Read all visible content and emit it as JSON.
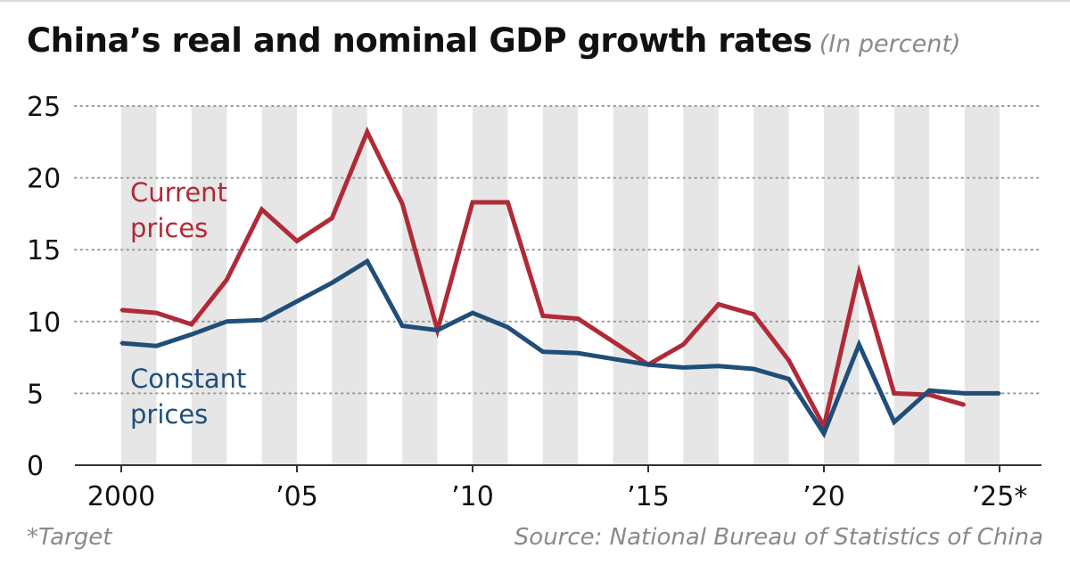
{
  "title": "China’s real and nominal GDP growth rates",
  "title_unit": "(In percent)",
  "footnote": "*Target",
  "source": "Source: National Bureau of Statistics of China",
  "chart_data": {
    "type": "line",
    "x": [
      2000,
      2001,
      2002,
      2003,
      2004,
      2005,
      2006,
      2007,
      2008,
      2009,
      2010,
      2011,
      2012,
      2013,
      2014,
      2015,
      2016,
      2017,
      2018,
      2019,
      2020,
      2021,
      2022,
      2023,
      2024,
      2025
    ],
    "series": [
      {
        "name": "Current prices",
        "label_lines": [
          "Current",
          "prices"
        ],
        "color": "#b02a37",
        "values": [
          10.8,
          10.6,
          9.8,
          12.9,
          17.8,
          15.6,
          17.2,
          23.2,
          18.2,
          9.4,
          18.3,
          18.3,
          10.4,
          10.2,
          8.6,
          7.0,
          8.4,
          11.2,
          10.5,
          7.3,
          2.7,
          13.4,
          5.0,
          4.9,
          4.2,
          null
        ]
      },
      {
        "name": "Constant prices",
        "label_lines": [
          "Constant",
          "prices"
        ],
        "color": "#1f4e79",
        "values": [
          8.5,
          8.3,
          9.1,
          10.0,
          10.1,
          11.4,
          12.7,
          14.2,
          9.7,
          9.4,
          10.6,
          9.6,
          7.9,
          7.8,
          7.4,
          7.0,
          6.8,
          6.9,
          6.7,
          6.0,
          2.2,
          8.4,
          3.0,
          5.2,
          5.0,
          5.0
        ]
      }
    ],
    "x_tick_values": [
      2000,
      2005,
      2010,
      2015,
      2020,
      2025
    ],
    "x_tick_labels": [
      "2000",
      "’05",
      "’10",
      "’15",
      "’20",
      "’25*"
    ],
    "y_ticks": [
      0,
      5,
      10,
      15,
      20,
      25
    ],
    "ylim": [
      0,
      25
    ],
    "xlim": [
      2000,
      2025
    ],
    "grid": "dotted horizontal",
    "background": "alternating gray vertical bands per year",
    "xlabel": "",
    "ylabel": ""
  }
}
